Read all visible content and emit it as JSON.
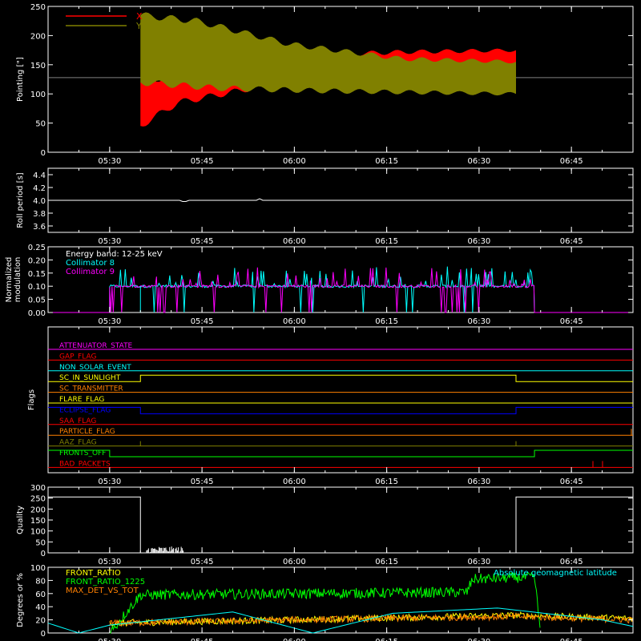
{
  "colors": {
    "background": "#000000",
    "axis": "#ffffff",
    "x_pointing": "#ff0000",
    "y_pointing": "#808000",
    "energy_band": "#ffffff",
    "collimator8": "#00ffff",
    "collimator9": "#ff00ff",
    "front_ratio": "#ffff00",
    "front_ratio_1225": "#00ff00",
    "max_det_vs_tot": "#ff8000",
    "geomag": "#00ffff"
  },
  "chart_data": [
    {
      "type": "line",
      "ylabel": "Pointing [\"]",
      "ylim": [
        0,
        250
      ],
      "yticks": [
        0,
        50,
        100,
        150,
        200,
        250
      ],
      "xlim": [
        "05:20",
        "06:55"
      ],
      "xticks": [
        "05:30",
        "05:45",
        "06:00",
        "06:15",
        "06:30",
        "06:45"
      ],
      "baseline": 128,
      "series": [
        {
          "name": "X",
          "time_start": "05:35",
          "time_end": "06:36",
          "envelope_low": [
            [
              0,
              45
            ],
            [
              0.1,
              85
            ],
            [
              0.3,
              110
            ],
            [
              0.6,
              120
            ],
            [
              1,
              125
            ]
          ],
          "envelope_high": [
            [
              0,
              120
            ],
            [
              0.15,
              140
            ],
            [
              0.4,
              165
            ],
            [
              0.7,
              172
            ],
            [
              1,
              175
            ]
          ]
        },
        {
          "name": "Y",
          "time_start": "05:35",
          "time_end": "06:36",
          "envelope_low": [
            [
              0,
              120
            ],
            [
              0.2,
              110
            ],
            [
              0.5,
              105
            ],
            [
              1,
              100
            ]
          ],
          "envelope_high": [
            [
              0,
              235
            ],
            [
              0.15,
              225
            ],
            [
              0.4,
              185
            ],
            [
              0.7,
              160
            ],
            [
              1,
              155
            ]
          ]
        }
      ]
    },
    {
      "type": "line",
      "ylabel": "Roll period [s]",
      "ylim": [
        3.5,
        4.5
      ],
      "yticks": [
        "3.6",
        "3.8",
        "4.0",
        "4.2",
        "4.4"
      ],
      "xticks": [
        "05:30",
        "05:45",
        "06:00",
        "06:15",
        "06:30",
        "06:45"
      ],
      "value": 4.0
    },
    {
      "type": "line",
      "ylabel": "Normalized modulation",
      "ylim": [
        0,
        0.25
      ],
      "yticks": [
        "0.00",
        "0.05",
        "0.10",
        "0.15",
        "0.20",
        "0.25"
      ],
      "xticks": [
        "05:30",
        "05:45",
        "06:00",
        "06:15",
        "06:30",
        "06:45"
      ],
      "legend": [
        "Energy band: 12-25 keV",
        "Collimator 8",
        "Collimator 9"
      ],
      "series": [
        {
          "name": "Collimator 8",
          "time_start": "05:30",
          "time_end": "06:39",
          "base": 0.095
        },
        {
          "name": "Collimator 9",
          "time_start": "05:30",
          "time_end": "06:39",
          "base": 0.095
        }
      ]
    },
    {
      "type": "line",
      "ylabel": "Flags",
      "xticks": [
        "05:30",
        "05:45",
        "06:00",
        "06:15",
        "06:30",
        "06:45"
      ],
      "flags": [
        {
          "name": "ATTENUATOR_STATE",
          "color": "#ff00ff",
          "steps": []
        },
        {
          "name": "GAP_FLAG",
          "color": "#ff0000",
          "steps": []
        },
        {
          "name": "NON_SOLAR_EVENT",
          "color": "#00ffff",
          "steps": []
        },
        {
          "name": "SC_IN_SUNLIGHT",
          "color": "#ffff00",
          "steps": [
            [
              "05:35",
              1
            ],
            [
              "06:36",
              0
            ]
          ]
        },
        {
          "name": "SC_TRANSMITTER",
          "color": "#ff8000",
          "steps": []
        },
        {
          "name": "FLARE_FLAG",
          "color": "#ffff00",
          "steps": []
        },
        {
          "name": "ECLIPSE_FLAG",
          "color": "#0000ff",
          "steps": [
            [
              "05:35",
              0
            ],
            [
              "06:36",
              1
            ]
          ]
        },
        {
          "name": "SAA_FLAG",
          "color": "#ff0000",
          "steps": []
        },
        {
          "name": "PARTICLE_FLAG",
          "color": "#ff8000",
          "steps": []
        },
        {
          "name": "AAZ_FLAG",
          "color": "#808000",
          "steps": []
        },
        {
          "name": "FRONTS_OFF",
          "color": "#00ff00",
          "steps": [
            [
              "05:30",
              0
            ],
            [
              "06:39",
              1
            ]
          ]
        },
        {
          "name": "BAD_PACKETS",
          "color": "#ff0000",
          "steps": []
        }
      ]
    },
    {
      "type": "line",
      "ylabel": "Quality",
      "ylim": [
        0,
        300
      ],
      "yticks": [
        0,
        50,
        100,
        150,
        200,
        250,
        300
      ],
      "xticks": [
        "05:30",
        "05:45",
        "06:00",
        "06:15",
        "06:30",
        "06:45"
      ],
      "segments": [
        {
          "time_start": "05:20",
          "time_end": "05:35",
          "value": 255
        },
        {
          "time_start": "05:35",
          "time_end": "06:36",
          "value": 0
        },
        {
          "time_start": "06:36",
          "time_end": "06:55",
          "value": 255
        }
      ]
    },
    {
      "type": "line",
      "ylabel": "Degrees or %",
      "ylim": [
        0,
        100
      ],
      "yticks": [
        0,
        20,
        40,
        60,
        80,
        100
      ],
      "xticks": [
        "05:30",
        "05:45",
        "06:00",
        "06:15",
        "06:30",
        "06:45"
      ],
      "legend": [
        "FRONT_RATIO",
        "FRONT_RATIO_1225",
        "MAX_DET_VS_TOT"
      ],
      "annotation": "Absolute geomagnetic latitude",
      "series": [
        {
          "name": "FRONT_RATIO",
          "approx": [
            [
              "05:30",
              15
            ],
            [
              "06:00",
              20
            ],
            [
              "06:36",
              27
            ],
            [
              "06:55",
              22
            ]
          ]
        },
        {
          "name": "FRONT_RATIO_1225",
          "approx": [
            [
              "05:30",
              0
            ],
            [
              "05:35",
              58
            ],
            [
              "06:28",
              62
            ],
            [
              "06:29",
              82
            ],
            [
              "06:39",
              85
            ],
            [
              "06:40",
              0
            ]
          ]
        },
        {
          "name": "MAX_DET_VS_TOT",
          "approx": [
            [
              "05:30",
              15
            ],
            [
              "06:00",
              20
            ],
            [
              "06:36",
              25
            ],
            [
              "06:55",
              20
            ]
          ]
        },
        {
          "name": "Absolute geomagnetic latitude",
          "approx": [
            [
              "05:20",
              15
            ],
            [
              "05:25",
              0
            ],
            [
              "05:30",
              12
            ],
            [
              "05:50",
              32
            ],
            [
              "06:03",
              0
            ],
            [
              "06:16",
              30
            ],
            [
              "06:33",
              38
            ],
            [
              "06:50",
              20
            ],
            [
              "06:55",
              10
            ]
          ]
        }
      ]
    }
  ]
}
